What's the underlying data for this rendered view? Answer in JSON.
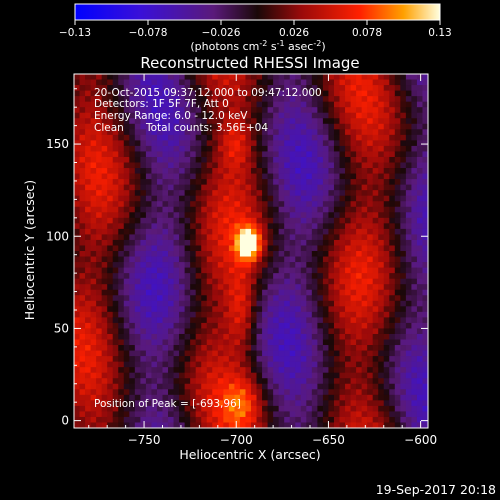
{
  "chart_data": {
    "type": "heatmap",
    "title": "Reconstructed RHESSI Image",
    "xlabel": "Heliocentric X (arcsec)",
    "ylabel": "Heliocentric Y (arcsec)",
    "xlim": [
      -788,
      -596
    ],
    "ylim": [
      -4,
      188
    ],
    "xticks": [
      -750,
      -700,
      -650,
      -600
    ],
    "yticks": [
      0,
      50,
      100,
      150
    ],
    "colorbar": {
      "min": -0.13,
      "max": 0.13,
      "ticks": [
        "-0.13",
        "-0.078",
        "-0.026",
        "0.026",
        "0.078",
        "0.13"
      ],
      "unit_label": "(photons cm",
      "unit_sup1": "-2",
      "unit_mid": " s",
      "unit_sup2": "-1",
      "unit_end": " asec",
      "unit_sup3": "-2",
      "unit_close": ")"
    },
    "annotations": {
      "line1": "20-Oct-2015 09:37:12.000 to 09:47:12.000",
      "line2": "Detectors: 1F 5F 7F, Att 0",
      "line3": "Energy Range: 6.0 - 12.0 keV",
      "line4_a": "Clean",
      "line4_b": "Total counts: 3.56E+04",
      "peak": "Position of Peak = [-693,96]"
    },
    "peak": {
      "x": -693,
      "y": 96,
      "value": 0.13
    },
    "footer": "19-Sep-2017 20:18"
  }
}
